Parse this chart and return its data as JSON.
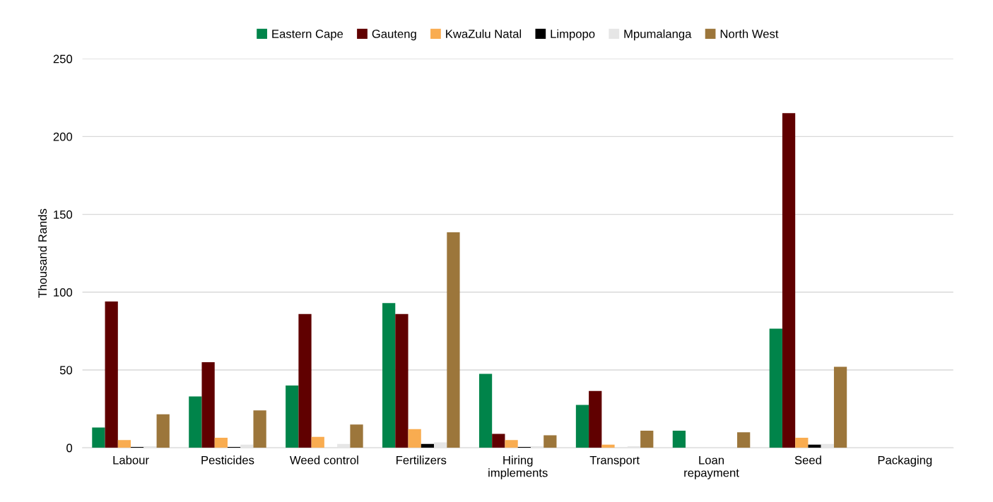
{
  "chart_data": {
    "type": "bar",
    "ylabel": "Thousand Rands",
    "categories": [
      "Labour",
      "Pesticides",
      "Weed control",
      "Fertilizers",
      "Hiring\nimplements",
      "Transport",
      "Loan\nrepayment",
      "Seed",
      "Packaging"
    ],
    "series": [
      {
        "name": "Eastern Cape",
        "color": "#00844a",
        "values": [
          13,
          33,
          40,
          93,
          47.5,
          27.5,
          11,
          76.5,
          0
        ]
      },
      {
        "name": "Gauteng",
        "color": "#600000",
        "values": [
          94,
          55,
          86,
          86,
          9,
          36.5,
          0,
          215,
          0
        ]
      },
      {
        "name": "KwaZulu Natal",
        "color": "#f9ac50",
        "values": [
          5,
          6.5,
          7,
          12,
          5,
          2,
          0,
          6.5,
          0
        ]
      },
      {
        "name": "Limpopo",
        "color": "#000000",
        "values": [
          0.5,
          0.5,
          0,
          2.5,
          0.5,
          0,
          0,
          2,
          0
        ]
      },
      {
        "name": "Mpumalanga",
        "color": "#e6e6e6",
        "values": [
          1,
          2,
          2.5,
          3.5,
          1,
          1,
          0,
          2.5,
          0
        ]
      },
      {
        "name": "North West",
        "color": "#9c763b",
        "values": [
          21.5,
          24,
          15,
          138.5,
          8,
          11,
          10,
          52,
          0
        ]
      }
    ],
    "ylim": [
      0,
      250
    ],
    "yticks": [
      0,
      50,
      100,
      150,
      200,
      250
    ],
    "grid": "y",
    "legend": "top"
  }
}
